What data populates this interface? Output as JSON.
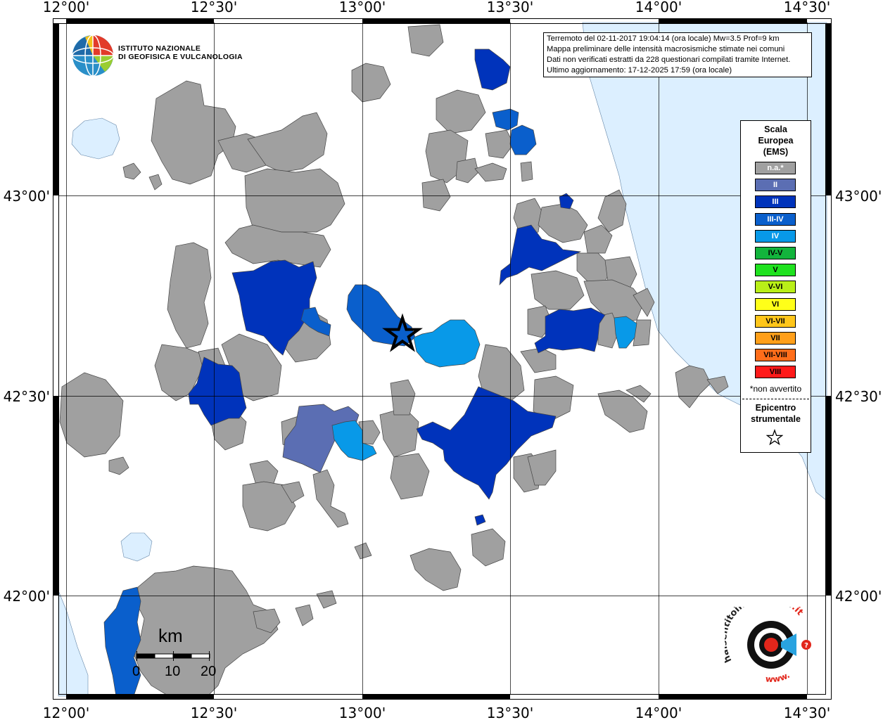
{
  "info": {
    "line1": "Terremoto del 02-11-2017 19:04:14 (ora locale) Mw=3.5 Prof=9 km",
    "line2": "Mappa preliminare delle intensità macrosismiche stimate nei comuni",
    "line3": "Dati non verificati estratti da 228 questionari compilati tramite Internet.",
    "line4": "Ultimo aggiornamento: 17-12-2025 17:59 (ora locale)"
  },
  "ticks": {
    "top": [
      "12°00'",
      "12°30'",
      "13°00'",
      "13°30'",
      "14°00'",
      "14°30'"
    ],
    "bottom": [
      "12°00'",
      "12°30'",
      "13°00'",
      "13°30'",
      "14°00'",
      "14°30'"
    ],
    "left": [
      "43°00'",
      "42°30'",
      "42°00'"
    ],
    "right": [
      "43°00'",
      "42°30'",
      "42°00'"
    ]
  },
  "ingv": {
    "line1": "ISTITUTO NAZIONALE",
    "line2": "DI GEOFISICA E VULCANOLOGIA"
  },
  "legend": {
    "title_lines": [
      "Scala",
      "Europea",
      "(EMS)"
    ],
    "items": [
      {
        "label": "n.a.*",
        "color": "#a0a0a0",
        "text_color": "#ffffff"
      },
      {
        "label": "II",
        "color": "#5b6eb3",
        "text_color": "#ffffff"
      },
      {
        "label": "III",
        "color": "#0033bb",
        "text_color": "#ffffff"
      },
      {
        "label": "III-IV",
        "color": "#0a5fcc",
        "text_color": "#ffffff"
      },
      {
        "label": "IV",
        "color": "#0899e8",
        "text_color": "#ffffff"
      },
      {
        "label": "IV-V",
        "color": "#12b43c",
        "text_color": "#000000"
      },
      {
        "label": "V",
        "color": "#1fe21f",
        "text_color": "#000000"
      },
      {
        "label": "V-VI",
        "color": "#b9ef18",
        "text_color": "#000000"
      },
      {
        "label": "VI",
        "color": "#ffff19",
        "text_color": "#000000"
      },
      {
        "label": "VI-VII",
        "color": "#ffc61a",
        "text_color": "#000000"
      },
      {
        "label": "VII",
        "color": "#ff9f1a",
        "text_color": "#000000"
      },
      {
        "label": "VII-VIII",
        "color": "#ff6d1a",
        "text_color": "#000000"
      },
      {
        "label": "VIII",
        "color": "#ff1a1a",
        "text_color": "#000000"
      }
    ],
    "note": "*non avvertito",
    "epicentre_lines": [
      "Epicentro",
      "strumentale"
    ]
  },
  "scalebar": {
    "unit": "km",
    "labels": [
      "0",
      "10",
      "20"
    ]
  },
  "hst": {
    "text_main": "haisentitoilterremoto",
    "text_domain": ".it",
    "text_www": "www."
  },
  "map_colors": {
    "land": "#ffffff",
    "sea": "#dcefff",
    "na": "#a0a0a0",
    "outline": "#444444"
  }
}
